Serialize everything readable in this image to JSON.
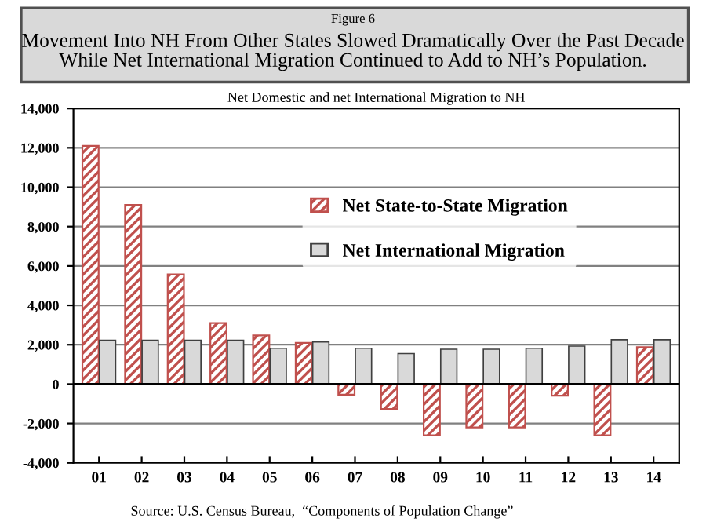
{
  "chart_data": {
    "type": "bar",
    "title": "Movement Into NH From Other States Slowed Dramatically Over the Past Decade\nWhile Net International Migration Continued to Add to NH’s Population.",
    "subtitle": "Net Domestic and net International Migration to NH",
    "annotations": [
      "Figure 6",
      "Source: U.S. Census Bureau,  “Components of Population Change”"
    ],
    "categories": [
      "01",
      "02",
      "03",
      "04",
      "05",
      "06",
      "07",
      "08",
      "09",
      "10",
      "11",
      "12",
      "13",
      "14"
    ],
    "series": [
      {
        "name": "Net State-to-State Migration",
        "color": "#c0504d",
        "values": [
          12100,
          9100,
          5570,
          3100,
          2470,
          2090,
          -540,
          -1260,
          -2600,
          -2200,
          -2200,
          -590,
          -2600,
          1870
        ]
      },
      {
        "name": "Net International Migration",
        "color": "#d9d9d9",
        "values": [
          2220,
          2220,
          2220,
          2220,
          1820,
          2140,
          1820,
          1550,
          1770,
          1770,
          1820,
          1930,
          2250,
          2250
        ]
      }
    ],
    "ylim": [
      -4000,
      14000
    ],
    "yticks": [
      {
        "value": -4000,
        "label": "-4,000"
      },
      {
        "value": -2000,
        "label": "-2,000"
      },
      {
        "value": 0,
        "label": "0"
      },
      {
        "value": 2000,
        "label": "2,000"
      },
      {
        "value": 4000,
        "label": "4,000"
      },
      {
        "value": 6000,
        "label": "6,000"
      },
      {
        "value": 8000,
        "label": "8,000"
      },
      {
        "value": 10000,
        "label": "10,000"
      },
      {
        "value": 12000,
        "label": "12,000"
      },
      {
        "value": 14000,
        "label": "14,000"
      }
    ],
    "grid": "y",
    "legend": "top right"
  }
}
